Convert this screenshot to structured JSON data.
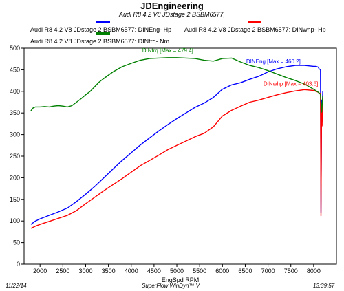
{
  "chart_data": {
    "type": "line",
    "title": "JDEngineering",
    "subtitle": "Audi R8 4.2 V8  JDstage 2    BSBM6577,",
    "xlabel": "EngSpd  RPM",
    "ylabel": "",
    "xlim": [
      1650,
      8500
    ],
    "ylim": [
      0,
      500
    ],
    "x_ticks": [
      2000,
      2500,
      3000,
      3500,
      4000,
      4500,
      5000,
      5500,
      6000,
      6500,
      7000,
      7500,
      8000
    ],
    "y_ticks": [
      0,
      50,
      100,
      150,
      200,
      250,
      300,
      350,
      400,
      450,
      500
    ],
    "grid": false,
    "legend_position": "top",
    "series": [
      {
        "name": "Audi R8 4.2 V8  JDstage 2    BSBM6577: DINEng- Hp",
        "color": "#0000ff",
        "annotation": "DINEng [Max = 460.2]",
        "x": [
          1800,
          1900,
          2000,
          2200,
          2400,
          2600,
          2800,
          3000,
          3200,
          3400,
          3600,
          3800,
          4000,
          4200,
          4400,
          4600,
          4800,
          5000,
          5200,
          5400,
          5600,
          5800,
          6000,
          6200,
          6400,
          6600,
          6800,
          7000,
          7200,
          7400,
          7600,
          7800,
          8000,
          8050,
          8100,
          8120,
          8150,
          8160,
          8175,
          8185,
          8200
        ],
        "y": [
          92,
          100,
          105,
          113,
          121,
          130,
          145,
          162,
          180,
          200,
          220,
          240,
          258,
          276,
          292,
          308,
          323,
          337,
          350,
          363,
          373,
          386,
          405,
          415,
          420,
          428,
          435,
          445,
          452,
          457,
          460,
          460,
          458,
          458,
          456,
          452,
          450,
          120,
          380,
          330,
          400
        ]
      },
      {
        "name": "Audi R8 4.2 V8  JDstage 2    BSBM6577: DINwhp-  Hp",
        "color": "#ff0000",
        "annotation": "DINwhp [Max = 403.6]",
        "x": [
          1800,
          1900,
          2000,
          2200,
          2400,
          2600,
          2800,
          3000,
          3200,
          3400,
          3600,
          3800,
          4000,
          4200,
          4400,
          4600,
          4800,
          5000,
          5200,
          5400,
          5600,
          5800,
          6000,
          6200,
          6400,
          6600,
          6800,
          7000,
          7200,
          7400,
          7600,
          7800,
          8000,
          8050,
          8100,
          8120,
          8150,
          8160,
          8175,
          8185,
          8200
        ],
        "y": [
          83,
          88,
          92,
          99,
          106,
          113,
          124,
          140,
          155,
          170,
          184,
          198,
          213,
          228,
          240,
          252,
          265,
          275,
          285,
          295,
          303,
          318,
          343,
          356,
          366,
          375,
          380,
          386,
          392,
          397,
          401,
          404,
          402,
          400,
          398,
          396,
          395,
          112,
          365,
          320,
          385
        ]
      },
      {
        "name": "Audi R8 4.2 V8  JDstage 2    BSBM6577: DINtrq- Nm",
        "color": "#008000",
        "annotation": "DINtrq [Max = 479.4]",
        "x": [
          1800,
          1850,
          1900,
          2000,
          2100,
          2200,
          2300,
          2400,
          2500,
          2600,
          2700,
          2800,
          2900,
          3000,
          3100,
          3200,
          3300,
          3400,
          3600,
          3800,
          4000,
          4200,
          4400,
          4600,
          4800,
          5000,
          5200,
          5400,
          5600,
          5800,
          6000,
          6200,
          6400,
          6600,
          6800,
          7000,
          7200,
          7400,
          7600,
          7800,
          8000,
          8100,
          8150,
          8175,
          8200
        ],
        "y": [
          355,
          362,
          364,
          364,
          365,
          364,
          366,
          367,
          366,
          364,
          367,
          375,
          383,
          392,
          400,
          411,
          422,
          430,
          445,
          457,
          465,
          472,
          476,
          477,
          478,
          478,
          477,
          476,
          472,
          470,
          476,
          477,
          468,
          460,
          455,
          448,
          440,
          432,
          425,
          417,
          405,
          398,
          393,
          352,
          390
        ]
      }
    ]
  },
  "footer": {
    "date": "11/22/14",
    "software": "SuperFlow WinDyn™ V",
    "time": "13:39:57"
  }
}
